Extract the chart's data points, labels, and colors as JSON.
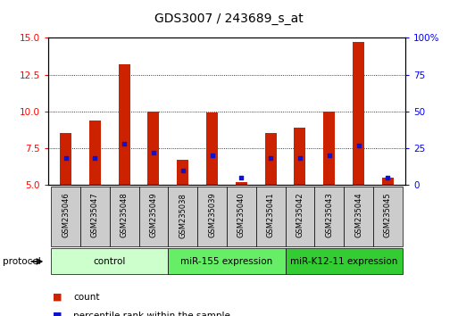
{
  "title": "GDS3007 / 243689_s_at",
  "samples": [
    "GSM235046",
    "GSM235047",
    "GSM235048",
    "GSM235049",
    "GSM235038",
    "GSM235039",
    "GSM235040",
    "GSM235041",
    "GSM235042",
    "GSM235043",
    "GSM235044",
    "GSM235045"
  ],
  "count_values": [
    8.5,
    9.4,
    13.2,
    10.0,
    6.7,
    9.9,
    5.2,
    8.5,
    8.9,
    10.0,
    14.7,
    5.5
  ],
  "percentile_values": [
    18,
    18,
    28,
    22,
    10,
    20,
    5,
    18,
    18,
    20,
    27,
    5
  ],
  "ylim_left": [
    5,
    15
  ],
  "ylim_right": [
    0,
    100
  ],
  "yticks_left": [
    5,
    7.5,
    10,
    12.5,
    15
  ],
  "yticks_right": [
    0,
    25,
    50,
    75,
    100
  ],
  "bar_color": "#cc2200",
  "percentile_color": "#1111cc",
  "groups": [
    {
      "label": "control",
      "start": 0,
      "end": 4,
      "color": "#ccffcc"
    },
    {
      "label": "miR-155 expression",
      "start": 4,
      "end": 8,
      "color": "#66ee66"
    },
    {
      "label": "miR-K12-11 expression",
      "start": 8,
      "end": 12,
      "color": "#33cc33"
    }
  ],
  "protocol_label": "protocol",
  "legend_count_label": "count",
  "legend_percentile_label": "percentile rank within the sample",
  "bar_width": 0.4,
  "bg_color": "#ffffff",
  "sample_box_color": "#cccccc"
}
